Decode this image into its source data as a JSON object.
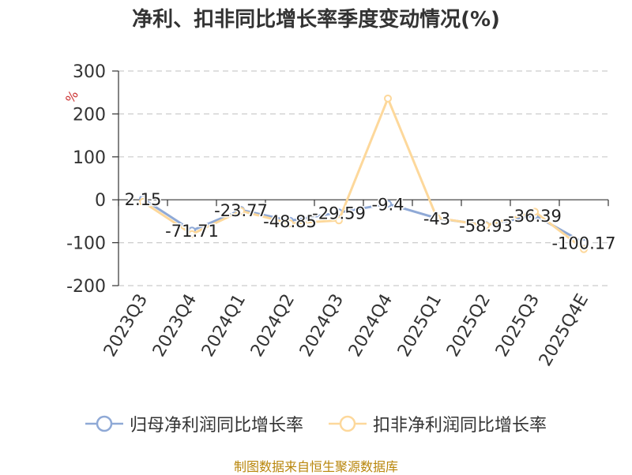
{
  "title": "净利、扣非同比增长率季度变动情况(%)",
  "source_note": "制图数据来自恒生聚源数据库",
  "colors": {
    "series1": "#8fa9d6",
    "series2": "#fdd89b",
    "grid": "#cccccc",
    "axis": "#333333",
    "unit": "#cc3333"
  },
  "chart_data": {
    "type": "line",
    "title": "净利、扣非同比增长率季度变动情况(%)",
    "ylabel": "%",
    "xlabel": "",
    "categories": [
      "2023Q3",
      "2023Q4",
      "2024Q1",
      "2024Q2",
      "2024Q3",
      "2024Q4",
      "2025Q1",
      "2025Q2",
      "2025Q3",
      "2025Q4E"
    ],
    "ylim": [
      -200,
      300
    ],
    "yticks": [
      300,
      200,
      100,
      0,
      -100,
      -200
    ],
    "grid": true,
    "legend_position": "bottom",
    "series": [
      {
        "name": "归母净利润同比增长率",
        "values": [
          2.15,
          -71.71,
          -23.77,
          -48.85,
          -29.59,
          -9.4,
          -43,
          -58.93,
          -36.39,
          -100.17
        ],
        "labels": [
          "2.15",
          "-71.71",
          "-23.77",
          "-48.85",
          "-29.59",
          "-9.4",
          "-43",
          "-58.93",
          "-36.39",
          "-100.17"
        ]
      },
      {
        "name": "扣非净利润同比增长率",
        "values": [
          -5,
          -80,
          -26,
          -55,
          -48,
          236,
          -42,
          -60,
          -28,
          -115
        ]
      }
    ]
  }
}
